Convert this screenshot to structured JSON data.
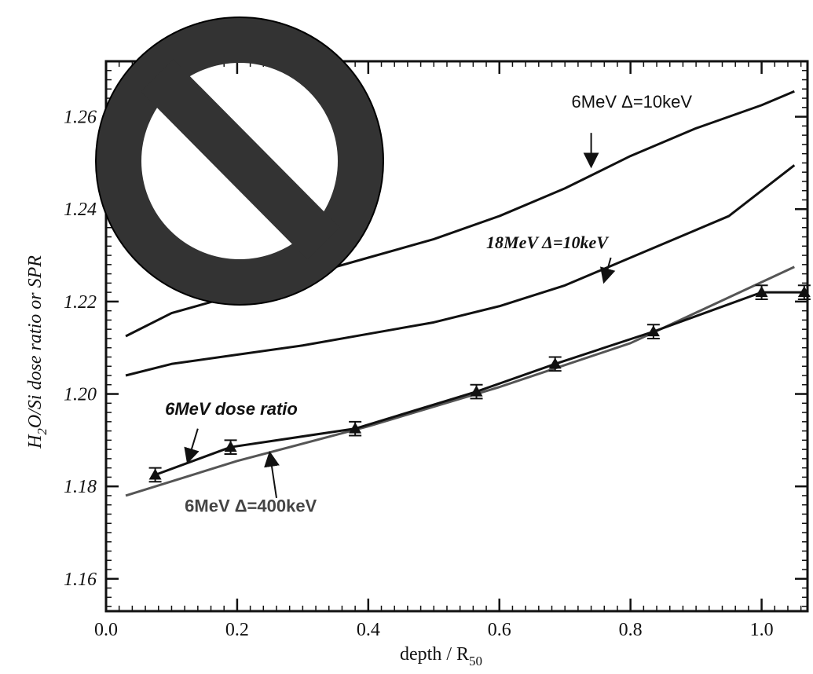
{
  "chart_data": {
    "type": "line",
    "title": "",
    "xlabel": "depth / R",
    "xlabel_subscript": "50",
    "ylabel_parts": {
      "h": "H",
      "sub": "2",
      "rest": "O/Si dose ratio or SPR"
    },
    "xlim": [
      0.0,
      1.07
    ],
    "ylim": [
      1.153,
      1.272
    ],
    "xticks": [
      "0.0",
      "0.2",
      "0.4",
      "0.6",
      "0.8",
      "1.0"
    ],
    "yticks": [
      "1.16",
      "1.18",
      "1.20",
      "1.22",
      "1.24",
      "1.26"
    ],
    "series": [
      {
        "name": "6MeV Δ=10keV",
        "color": "#111111",
        "x": [
          0.03,
          0.1,
          0.2,
          0.3,
          0.4,
          0.5,
          0.6,
          0.7,
          0.8,
          0.9,
          1.0,
          1.05
        ],
        "y": [
          1.2125,
          1.2175,
          1.2215,
          1.2255,
          1.2295,
          1.2335,
          1.2385,
          1.2445,
          1.2515,
          1.2575,
          1.2625,
          1.2655
        ]
      },
      {
        "name": "18MeV Δ=10keV",
        "color": "#111111",
        "x": [
          0.03,
          0.1,
          0.2,
          0.3,
          0.4,
          0.5,
          0.6,
          0.7,
          0.8,
          0.9,
          0.95,
          1.0,
          1.05
        ],
        "y": [
          1.204,
          1.2065,
          1.2085,
          1.2105,
          1.213,
          1.2155,
          1.219,
          1.2235,
          1.2295,
          1.2355,
          1.2385,
          1.244,
          1.2495
        ]
      },
      {
        "name": "6MeV Δ=400keV",
        "color": "#555555",
        "x": [
          0.03,
          0.2,
          0.4,
          0.6,
          0.8,
          1.05
        ],
        "y": [
          1.178,
          1.1855,
          1.193,
          1.2015,
          1.211,
          1.2275
        ]
      },
      {
        "name": "6MeV dose ratio",
        "color": "#111111",
        "x": [
          0.075,
          0.19,
          0.38,
          0.565,
          0.685,
          0.835,
          1.0,
          1.065
        ],
        "y": [
          1.1825,
          1.1885,
          1.1925,
          1.2005,
          1.2065,
          1.2135,
          1.222,
          1.222
        ],
        "err": [
          0.0015,
          0.0015,
          0.0015,
          0.0015,
          0.0015,
          0.0015,
          0.0015,
          0.0015
        ]
      }
    ],
    "annotations": [
      {
        "text": "6MeV Δ=10keV",
        "style": "ann-sans",
        "at": [
          0.71,
          1.262
        ],
        "arrow_from": [
          0.74,
          1.2565
        ],
        "arrow_to": [
          0.74,
          1.2495
        ]
      },
      {
        "text": "18MeV Δ=10keV",
        "style": "ann-serif-bold-it",
        "at": [
          0.58,
          1.2315
        ],
        "arrow_from": [
          0.77,
          1.2295
        ],
        "arrow_to": [
          0.76,
          1.2245
        ]
      },
      {
        "text": "6MeV dose ratio",
        "style": "ann-sans-bold-it",
        "at": [
          0.09,
          1.1955
        ],
        "arrow_from": [
          0.14,
          1.1925
        ],
        "arrow_to": [
          0.125,
          1.1855
        ]
      },
      {
        "text": "6MeV Δ=400keV",
        "style": "ann-sans-bold-grey",
        "at": [
          0.12,
          1.1745
        ],
        "arrow_from": [
          0.26,
          1.1775
        ],
        "arrow_to": [
          0.25,
          1.187
        ]
      }
    ]
  },
  "overlay": {
    "name": "prohibited-sign-icon",
    "color": "#333333"
  }
}
